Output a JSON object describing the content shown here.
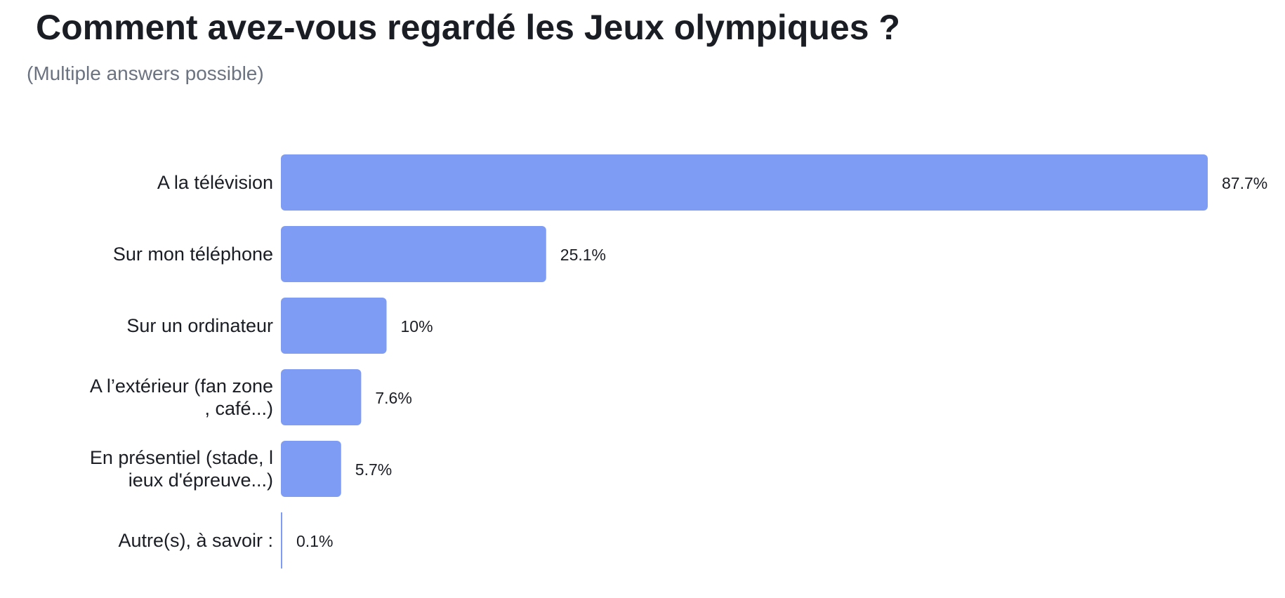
{
  "chart_data": {
    "type": "bar",
    "orientation": "horizontal",
    "title": "Comment avez-vous regardé les Jeux olympiques ?",
    "subtitle": "(Multiple answers possible)",
    "categories": [
      [
        "A la télévision"
      ],
      [
        "Sur mon téléphone"
      ],
      [
        "Sur un ordinateur"
      ],
      [
        "A l’extérieur (fan zone",
        ", café...)"
      ],
      [
        "En présentiel (stade, l",
        "ieux d'épreuve...)"
      ],
      [
        "Autre(s), à savoir :"
      ]
    ],
    "values": [
      87.7,
      25.1,
      10,
      7.6,
      5.7,
      0.1
    ],
    "value_labels": [
      "87.7%",
      "25.1%",
      "10%",
      "7.6%",
      "5.7%",
      "0.1%"
    ],
    "unit": "%",
    "bar_color": "#7f9cf5",
    "xlim": [
      0,
      87.7
    ],
    "grid": false,
    "legend": "none"
  }
}
